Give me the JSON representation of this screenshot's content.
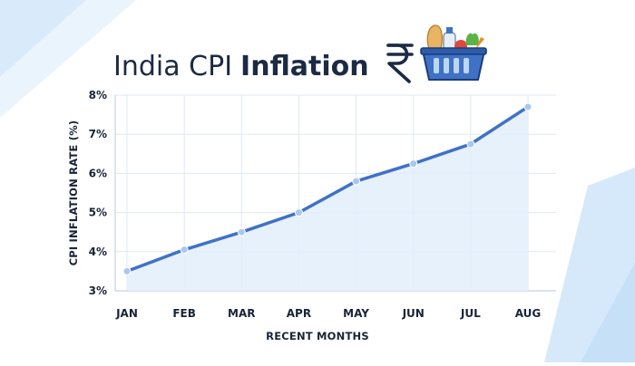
{
  "title": {
    "light": "India CPI",
    "bold": "Inflation"
  },
  "icons": {
    "currency": "rupee-icon",
    "basket": "grocery-basket-icon"
  },
  "colors": {
    "line": "#3f72c6",
    "area": "#e3effc",
    "grid": "#dfe8f3",
    "text": "#1a2438",
    "background_shape": "#d6e9fb"
  },
  "chart_data": {
    "type": "area",
    "title": "India CPI Inflation",
    "xlabel": "RECENT MONTHS",
    "ylabel": "CPI INFLATION RATE (%)",
    "categories": [
      "JAN",
      "FEB",
      "MAR",
      "APR",
      "MAY",
      "JUN",
      "JUL",
      "AUG"
    ],
    "values": [
      3.5,
      4.05,
      4.5,
      5.0,
      5.8,
      6.25,
      6.75,
      7.7
    ],
    "ylim": [
      3,
      8
    ],
    "yticks": [
      "3%",
      "4%",
      "5%",
      "6%",
      "7%",
      "8%"
    ],
    "grid": true,
    "legend": "none"
  }
}
